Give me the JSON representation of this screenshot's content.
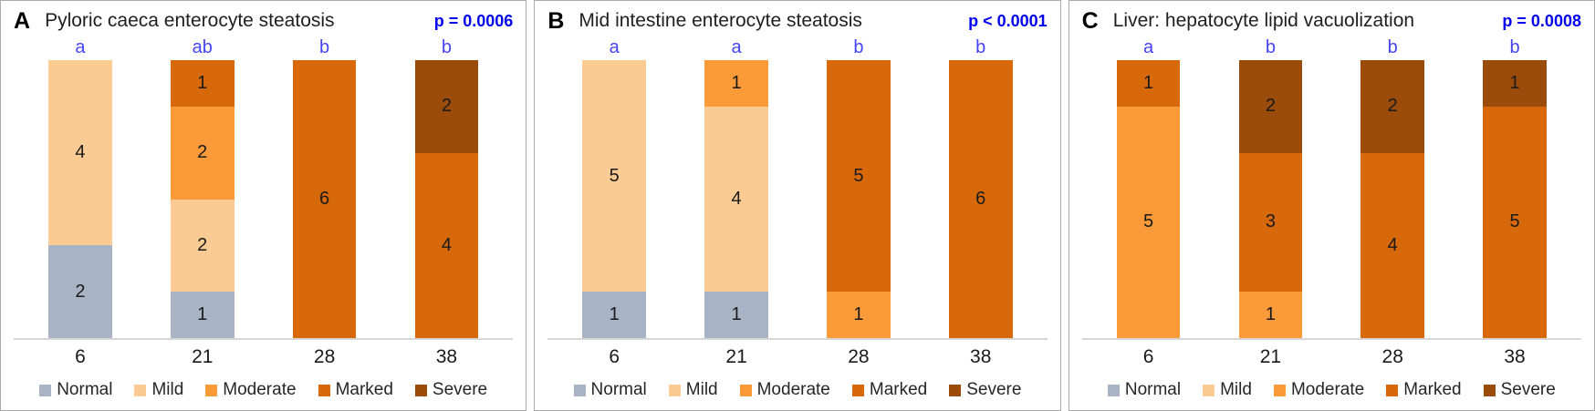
{
  "colors": {
    "normal": "#a9b3c6",
    "mild": "#fccb94",
    "moderate": "#fa9a38",
    "marked": "#d8690b",
    "severe": "#9b4c0a",
    "sig_letter": "#4444f2",
    "p_value": "#0101ee",
    "axis_line": "#d6d6d6",
    "panel_border": "#aaaaaa"
  },
  "legend": [
    "Normal",
    "Mild",
    "Moderate",
    "Marked",
    "Severe"
  ],
  "chart_data": [
    {
      "type": "bar",
      "stacked": true,
      "normalized": true,
      "panel": "A",
      "title": "Pyloric caeca enterocyte steatosis",
      "p_label": "p = 0.0006",
      "categories": [
        "6",
        "21",
        "28",
        "38"
      ],
      "sig_letters": [
        "a",
        "ab",
        "b",
        "b"
      ],
      "series": [
        {
          "name": "Normal",
          "values": [
            2,
            1,
            0,
            0
          ]
        },
        {
          "name": "Mild",
          "values": [
            4,
            2,
            0,
            0
          ]
        },
        {
          "name": "Moderate",
          "values": [
            0,
            2,
            0,
            0
          ]
        },
        {
          "name": "Marked",
          "values": [
            0,
            1,
            6,
            4
          ]
        },
        {
          "name": "Severe",
          "values": [
            0,
            0,
            0,
            2
          ]
        }
      ]
    },
    {
      "type": "bar",
      "stacked": true,
      "normalized": true,
      "panel": "B",
      "title": "Mid intestine enterocyte steatosis",
      "p_label": "p < 0.0001",
      "categories": [
        "6",
        "21",
        "28",
        "38"
      ],
      "sig_letters": [
        "a",
        "a",
        "b",
        "b"
      ],
      "series": [
        {
          "name": "Normal",
          "values": [
            1,
            1,
            0,
            0
          ]
        },
        {
          "name": "Mild",
          "values": [
            5,
            4,
            0,
            0
          ]
        },
        {
          "name": "Moderate",
          "values": [
            0,
            1,
            1,
            0
          ]
        },
        {
          "name": "Marked",
          "values": [
            0,
            0,
            5,
            6
          ]
        },
        {
          "name": "Severe",
          "values": [
            0,
            0,
            0,
            0
          ]
        }
      ]
    },
    {
      "type": "bar",
      "stacked": true,
      "normalized": true,
      "panel": "C",
      "title": "Liver: hepatocyte lipid vacuolization",
      "p_label": "p = 0.0008",
      "categories": [
        "6",
        "21",
        "28",
        "38"
      ],
      "sig_letters": [
        "a",
        "b",
        "b",
        "b"
      ],
      "series": [
        {
          "name": "Normal",
          "values": [
            0,
            0,
            0,
            0
          ]
        },
        {
          "name": "Mild",
          "values": [
            0,
            0,
            0,
            0
          ]
        },
        {
          "name": "Moderate",
          "values": [
            5,
            1,
            0,
            0
          ]
        },
        {
          "name": "Marked",
          "values": [
            1,
            3,
            4,
            5
          ]
        },
        {
          "name": "Severe",
          "values": [
            0,
            2,
            2,
            1
          ]
        }
      ]
    }
  ]
}
